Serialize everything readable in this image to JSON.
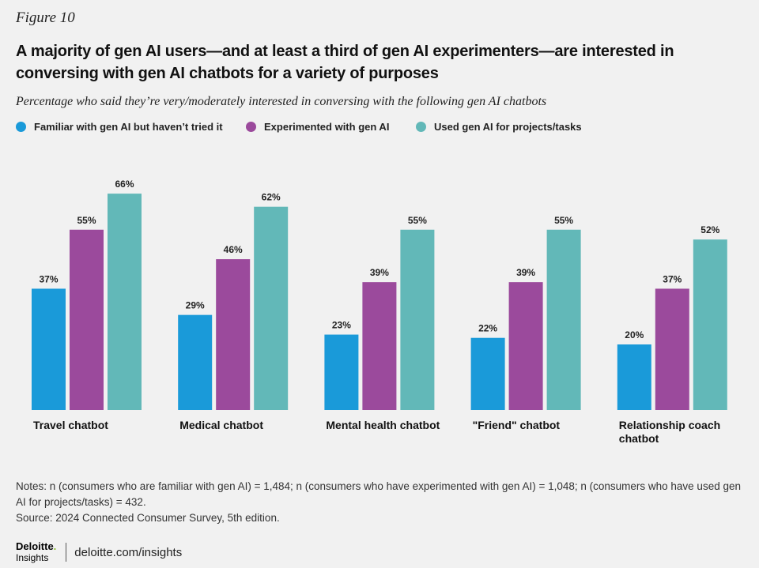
{
  "figure_label": "Figure 10",
  "title": "A majority of gen AI users—and at least a third of gen AI experimenters—are interested in conversing with gen AI chatbots for a variety of purposes",
  "subtitle": "Percentage who said they’re very/moderately interested in conversing with the following gen AI chatbots",
  "legend": [
    {
      "label": "Familiar with gen AI but haven’t tried it",
      "color": "#1a9ad9"
    },
    {
      "label": "Experimented with gen AI",
      "color": "#9b4a9c"
    },
    {
      "label": "Used gen AI for projects/tasks",
      "color": "#62b8b8"
    }
  ],
  "chart_data": {
    "type": "bar",
    "categories": [
      "Travel chatbot",
      "Medical chatbot",
      "Mental health chatbot",
      "\"Friend\" chatbot",
      "Relationship coach chatbot"
    ],
    "series": [
      {
        "name": "Familiar with gen AI but haven’t tried it",
        "color": "#1a9ad9",
        "values": [
          37,
          29,
          23,
          22,
          20
        ]
      },
      {
        "name": "Experimented with gen AI",
        "color": "#9b4a9c",
        "values": [
          55,
          46,
          39,
          39,
          37
        ]
      },
      {
        "name": "Used gen AI for projects/tasks",
        "color": "#62b8b8",
        "values": [
          66,
          62,
          55,
          55,
          52
        ]
      }
    ],
    "value_suffix": "%",
    "ylim": [
      0,
      70
    ],
    "grid": false,
    "legend_position": "top-left"
  },
  "notes": "Notes: n (consumers who are familiar with gen AI) = 1,484; n (consumers who have experimented with gen AI) = 1,048; n (consumers who have used gen AI for projects/tasks) = 432.",
  "source": "Source: 2024 Connected Consumer Survey, 5th edition.",
  "footer": {
    "brand": "Deloitte",
    "brand_dot": ".",
    "brand_sub": "Insights",
    "url": "deloitte.com/insights"
  }
}
